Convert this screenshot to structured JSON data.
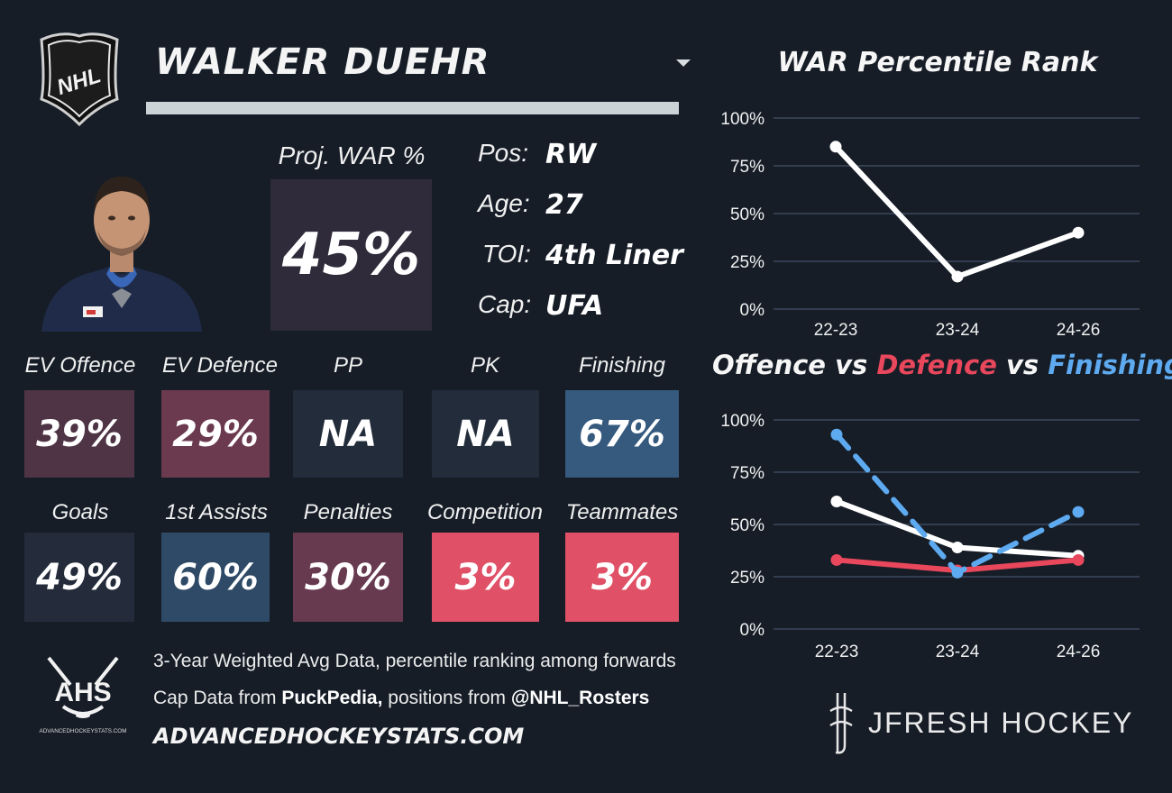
{
  "player": {
    "name": "WALKER DUEHR",
    "proj_war_label": "Proj. WAR %",
    "proj_war_value": "45%",
    "info": [
      {
        "label": "Pos:",
        "value": "RW"
      },
      {
        "label": "Age:",
        "value": "27"
      },
      {
        "label": "TOI:",
        "value": "4th Liner"
      },
      {
        "label": "Cap:",
        "value": "UFA"
      }
    ]
  },
  "logos": {
    "league": "NHL",
    "ahs_text": "AHS",
    "ahs_sub": "ADVANCEDHOCKEYSTATS.COM",
    "jfresh": "JFRESH HOCKEY"
  },
  "tiles_row1": [
    {
      "label": "EV Offence",
      "value": "39%",
      "color": "#4e3444"
    },
    {
      "label": "EV Defence",
      "value": "29%",
      "color": "#6b3a4f"
    },
    {
      "label": "PP",
      "value": "NA",
      "color": "#222c3a"
    },
    {
      "label": "PK",
      "value": "NA",
      "color": "#222c3a"
    },
    {
      "label": "Finishing",
      "value": "67%",
      "color": "#355a7e"
    }
  ],
  "tiles_row2": [
    {
      "label": "Goals",
      "value": "49%",
      "color": "#242c3b"
    },
    {
      "label": "1st Assists",
      "value": "60%",
      "color": "#2f4a66"
    },
    {
      "label": "Penalties",
      "value": "30%",
      "color": "#683a4f"
    },
    {
      "label": "Competition",
      "value": "3%",
      "color": "#e05066"
    },
    {
      "label": "Teammates",
      "value": "3%",
      "color": "#e05066"
    }
  ],
  "footer": {
    "line1": "3-Year Weighted Avg Data, percentile ranking among forwards",
    "line2_pre": "Cap Data from ",
    "line2_b1": "PuckPedia,",
    "line2_mid": " positions from ",
    "line2_b2": "@NHL_Rosters",
    "line3": "ADVANCEDHOCKEYSTATS.COM"
  },
  "chart_data": [
    {
      "type": "line",
      "title": "WAR Percentile Rank",
      "categories": [
        "22-23",
        "23-24",
        "24-26"
      ],
      "yticks": [
        "0%",
        "25%",
        "50%",
        "75%",
        "100%"
      ],
      "ylim": [
        0,
        100
      ],
      "grid": true,
      "series": [
        {
          "values": [
            85,
            17,
            40
          ],
          "color": "#ffffff",
          "dashed": false
        }
      ]
    },
    {
      "type": "line",
      "title_parts": [
        {
          "text": "Offence",
          "color": "#f6f6f6"
        },
        {
          "text": " vs ",
          "color": "#f6f6f6"
        },
        {
          "text": "Defence",
          "color": "#e8475c"
        },
        {
          "text": " vs ",
          "color": "#f6f6f6"
        },
        {
          "text": "Finishing",
          "color": "#5eaaf0"
        }
      ],
      "categories": [
        "22-23",
        "23-24",
        "24-26"
      ],
      "yticks": [
        "0%",
        "25%",
        "50%",
        "75%",
        "100%"
      ],
      "ylim": [
        0,
        100
      ],
      "grid": true,
      "series": [
        {
          "name": "Offence",
          "values": [
            61,
            39,
            35
          ],
          "color": "#ffffff",
          "dashed": false
        },
        {
          "name": "Defence",
          "values": [
            33,
            28,
            33
          ],
          "color": "#e8475c",
          "dashed": false
        },
        {
          "name": "Finishing",
          "values": [
            93,
            27,
            56
          ],
          "color": "#5eaaf0",
          "dashed": true
        }
      ]
    }
  ]
}
